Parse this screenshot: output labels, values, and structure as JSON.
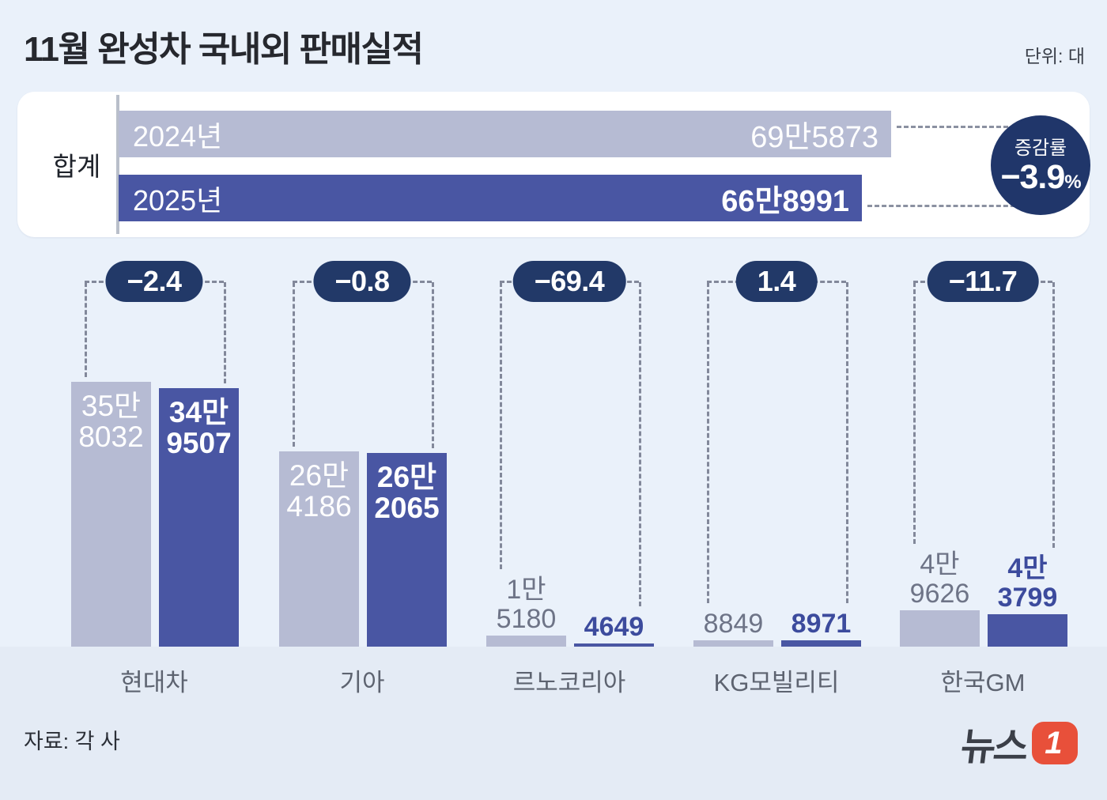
{
  "header": {
    "title": "11월 완성차 국내외 판매실적",
    "unit_label": "단위: 대"
  },
  "summary": {
    "row_label": "합계",
    "bars": [
      {
        "year_label": "2024년",
        "value_label": "69만5873",
        "value": 695873
      },
      {
        "year_label": "2025년",
        "value_label": "66만8991",
        "value": 668991
      }
    ],
    "change_badge": {
      "label": "증감률",
      "value": "−3.9",
      "percent_sign": "%"
    }
  },
  "chart_data": {
    "type": "bar",
    "title": "11월 완성차 국내외 판매실적",
    "unit": "대",
    "categories": [
      "현대차",
      "기아",
      "르노코리아",
      "KG모빌리티",
      "한국GM"
    ],
    "series": [
      {
        "name": "2024년",
        "values": [
          358032,
          264186,
          15180,
          8849,
          49626
        ]
      },
      {
        "name": "2025년",
        "values": [
          349507,
          262065,
          4649,
          8971,
          43799
        ]
      }
    ],
    "change_pct": [
      -2.4,
      -0.8,
      -69.4,
      1.4,
      -11.7
    ],
    "total": {
      "y2024": 695873,
      "y2025": 668991,
      "change_pct": -3.9
    },
    "ylim": [
      0,
      360000
    ],
    "grid": false,
    "legend_position": "none"
  },
  "groups": [
    {
      "name": "현대차",
      "change": "−2.4",
      "bars": [
        {
          "lines": [
            "35만",
            "8032"
          ],
          "placement": "inside"
        },
        {
          "lines": [
            "34만",
            "9507"
          ],
          "placement": "inside"
        }
      ]
    },
    {
      "name": "기아",
      "change": "−0.8",
      "bars": [
        {
          "lines": [
            "26만",
            "4186"
          ],
          "placement": "inside"
        },
        {
          "lines": [
            "26만",
            "2065"
          ],
          "placement": "inside"
        }
      ]
    },
    {
      "name": "르노코리아",
      "change": "−69.4",
      "bars": [
        {
          "lines": [
            "1만",
            "5180"
          ],
          "placement": "above"
        },
        {
          "lines": [
            "4649"
          ],
          "placement": "above"
        }
      ]
    },
    {
      "name": "KG모빌리티",
      "change": "1.4",
      "bars": [
        {
          "lines": [
            "8849"
          ],
          "placement": "above"
        },
        {
          "lines": [
            "8971"
          ],
          "placement": "above"
        }
      ]
    },
    {
      "name": "한국GM",
      "change": "−11.7",
      "bars": [
        {
          "lines": [
            "4만",
            "9626"
          ],
          "placement": "above"
        },
        {
          "lines": [
            "4만",
            "3799"
          ],
          "placement": "above"
        }
      ]
    }
  ],
  "colors": {
    "background": "#eaf1fa",
    "bar_2024": "#b6bbd3",
    "bar_2025": "#4956a3",
    "badge_navy": "#223968",
    "logo_orange": "#e8503a"
  },
  "footer": {
    "source": "자료: 각 사",
    "logo_text": "뉴스",
    "logo_number": "1"
  }
}
